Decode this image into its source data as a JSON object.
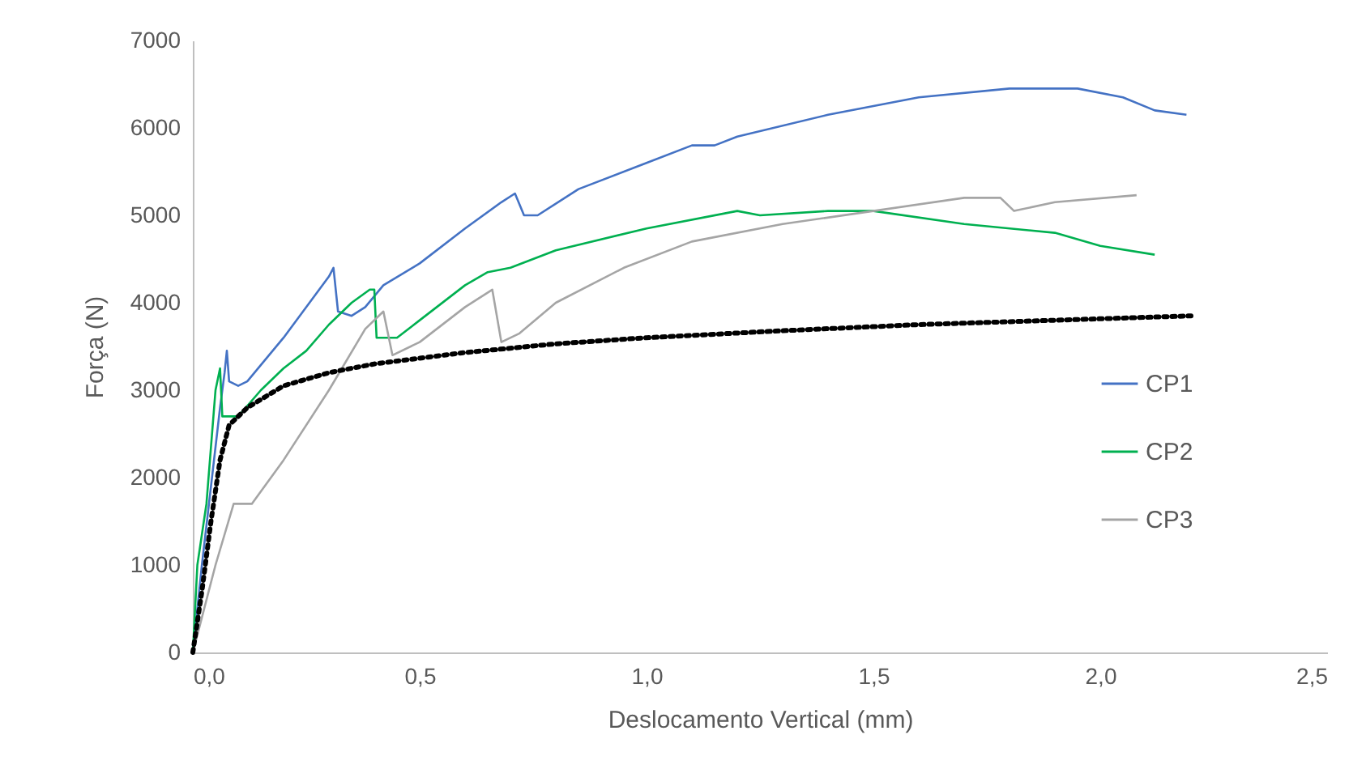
{
  "chart_data": {
    "type": "line",
    "xlabel": "Deslocamento Vertical (mm)",
    "ylabel": "Força (N)",
    "xlim": [
      0,
      2.5
    ],
    "ylim": [
      0,
      7000
    ],
    "xticks": [
      {
        "value": 0,
        "label": "0,0"
      },
      {
        "value": 0.5,
        "label": "0,5"
      },
      {
        "value": 1,
        "label": "1,0"
      },
      {
        "value": 1.5,
        "label": "1,5"
      },
      {
        "value": 2,
        "label": "2,0"
      },
      {
        "value": 2.5,
        "label": "2,5"
      }
    ],
    "yticks": [
      0,
      1000,
      2000,
      3000,
      4000,
      5000,
      6000,
      7000
    ],
    "grid": false,
    "legend": "right",
    "marker": "none",
    "series": [
      {
        "name": "CP1",
        "color": "#4472c4",
        "line_style": "solid",
        "x": [
          0,
          0.02,
          0.06,
          0.07,
          0.075,
          0.08,
          0.1,
          0.12,
          0.2,
          0.3,
          0.31,
          0.32,
          0.35,
          0.38,
          0.42,
          0.5,
          0.6,
          0.68,
          0.71,
          0.73,
          0.76,
          0.85,
          1.0,
          1.1,
          1.15,
          1.2,
          1.4,
          1.6,
          1.8,
          1.95,
          2.05,
          2.12,
          2.19
        ],
        "values": [
          0,
          1000,
          2800,
          3200,
          3450,
          3100,
          3050,
          3100,
          3600,
          4300,
          4400,
          3900,
          3850,
          3950,
          4200,
          4450,
          4850,
          5150,
          5250,
          5000,
          5000,
          5300,
          5600,
          5800,
          5800,
          5900,
          6150,
          6350,
          6450,
          6450,
          6350,
          6200,
          6150
        ]
      },
      {
        "name": "CP2",
        "color": "#00b050",
        "line_style": "solid",
        "x": [
          0,
          0.01,
          0.03,
          0.05,
          0.06,
          0.065,
          0.1,
          0.15,
          0.2,
          0.25,
          0.3,
          0.35,
          0.39,
          0.4,
          0.405,
          0.45,
          0.5,
          0.6,
          0.65,
          0.7,
          0.8,
          1.0,
          1.2,
          1.25,
          1.4,
          1.5,
          1.7,
          1.9,
          2.0,
          2.12
        ],
        "values": [
          0,
          1000,
          1700,
          3000,
          3250,
          2700,
          2700,
          3000,
          3250,
          3450,
          3750,
          4000,
          4150,
          4150,
          3600,
          3600,
          3800,
          4200,
          4350,
          4400,
          4600,
          4850,
          5050,
          5000,
          5050,
          5050,
          4900,
          4800,
          4650,
          4550
        ]
      },
      {
        "name": "CP3",
        "color": "#a5a5a5",
        "line_style": "solid",
        "x": [
          0,
          0.05,
          0.09,
          0.13,
          0.2,
          0.3,
          0.38,
          0.42,
          0.44,
          0.5,
          0.6,
          0.66,
          0.68,
          0.72,
          0.8,
          0.95,
          1.1,
          1.3,
          1.5,
          1.7,
          1.78,
          1.81,
          1.9,
          2.08
        ],
        "values": [
          0,
          1000,
          1700,
          1700,
          2200,
          3000,
          3700,
          3900,
          3400,
          3550,
          3950,
          4150,
          3550,
          3650,
          4000,
          4400,
          4700,
          4900,
          5050,
          5200,
          5200,
          5050,
          5150,
          5230
        ]
      },
      {
        "color": "#000000",
        "line_style": "dotted",
        "x": [
          0,
          0.02,
          0.04,
          0.06,
          0.08,
          0.12,
          0.2,
          0.3,
          0.4,
          0.6,
          0.8,
          1.0,
          1.3,
          1.6,
          1.9,
          2.2
        ],
        "values": [
          0,
          700,
          1500,
          2200,
          2600,
          2800,
          3050,
          3200,
          3300,
          3430,
          3530,
          3600,
          3680,
          3750,
          3800,
          3850
        ]
      }
    ]
  }
}
